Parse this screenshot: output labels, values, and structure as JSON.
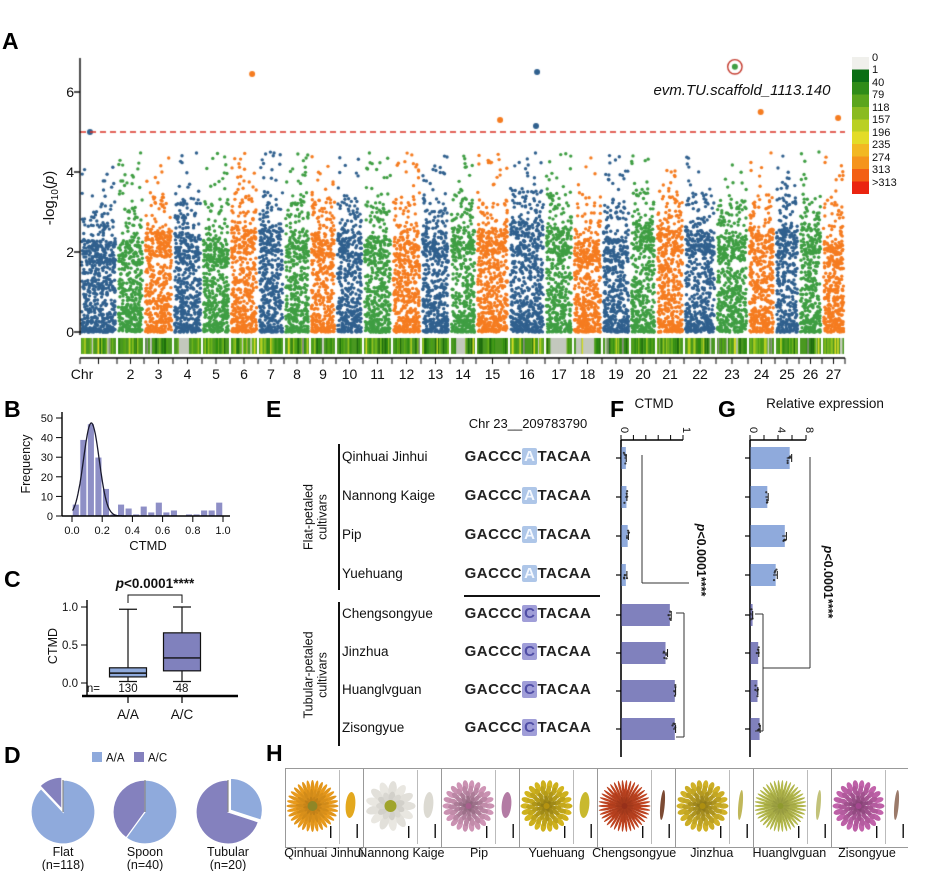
{
  "panel_labels": {
    "A": "A",
    "B": "B",
    "C": "C",
    "D": "D",
    "E": "E",
    "F": "F",
    "G": "G",
    "H": "H"
  },
  "chart_data": {
    "A_manhattan": {
      "type": "scatter",
      "subtype": "manhattan_gwas",
      "ylabel": "-log10(p)",
      "ylabel_parts": {
        "pre": "-log",
        "sub": "10",
        "open": "(",
        "p": "p",
        "close": ")"
      },
      "yticks": [
        0,
        2,
        4,
        6
      ],
      "ylim": [
        0,
        7
      ],
      "significance_threshold": 5,
      "threshold_color": "#d93025",
      "gene_label": "evm.TU.scaffold_1113.140",
      "chrom_labels": [
        "Chr",
        "2",
        "3",
        "4",
        "5",
        "6",
        "7",
        "8",
        "9",
        "10",
        "11",
        "12",
        "13",
        "14",
        "15",
        "16",
        "17",
        "18",
        "19",
        "20",
        "21",
        "22",
        "23",
        "24",
        "25",
        "26",
        "27"
      ],
      "chrom_rel_widths": [
        37,
        27,
        29,
        29,
        28,
        28,
        26,
        26,
        26,
        27,
        29,
        29,
        29,
        26,
        33,
        36,
        28,
        29,
        28,
        26,
        28,
        32,
        32,
        27,
        24,
        23,
        23
      ],
      "point_colors": [
        "#30608e",
        "#3f9e43",
        "#f57c20"
      ],
      "highlights": [
        {
          "chr": 1,
          "f": 0.27,
          "value": 5.0
        },
        {
          "chr": 6,
          "f": 0.79,
          "value": 6.45
        },
        {
          "chr": 15,
          "f": 0.73,
          "value": 5.3
        },
        {
          "chr": 16,
          "f": 0.75,
          "value": 5.15
        },
        {
          "chr": 16,
          "f": 0.78,
          "value": 6.5
        },
        {
          "chr": 23,
          "f": 0.59,
          "value": 6.63,
          "circled": true
        },
        {
          "chr": 24,
          "f": 0.47,
          "value": 5.5
        },
        {
          "chr": 27,
          "f": 0.7,
          "value": 5.35
        }
      ],
      "circle_color": "#c43b2e",
      "colorbar": {
        "labels": [
          "0",
          "1",
          "40",
          "79",
          "118",
          "157",
          "196",
          "235",
          "274",
          "313",
          ">313"
        ],
        "colors": [
          "#f0f0ec",
          "#0a6e14",
          "#2f8c18",
          "#5ba51c",
          "#8abb20",
          "#bad024",
          "#e3dc28",
          "#f2b822",
          "#f5941c",
          "#f36014",
          "#ea2410"
        ]
      },
      "density_track_palette": [
        [
          "#1d6b0e",
          0.16
        ],
        [
          "#2f8c12",
          0.2
        ],
        [
          "#4da016",
          0.2
        ],
        [
          "#6fb41c",
          0.15
        ],
        [
          "#93c41f",
          0.1
        ],
        [
          "#b6d022",
          0.07
        ],
        [
          "#d8dc26",
          0.04
        ],
        [
          "#c9cfc0",
          0.05
        ],
        [
          "#8a8f85",
          0.03
        ]
      ]
    },
    "B_histogram": {
      "type": "bar",
      "subtype": "histogram",
      "xlabel": "CTMD",
      "ylabel": "Frequency",
      "bin_start": 0.0,
      "bin_width": 0.05,
      "values": [
        6,
        39,
        47,
        30,
        14,
        1,
        6,
        4,
        1,
        5,
        2,
        7,
        2,
        3,
        0,
        1,
        1,
        3,
        3,
        7
      ],
      "xticks": [
        "0.0",
        "0.2",
        "0.4",
        "0.6",
        "0.8",
        "1.0"
      ],
      "yticks": [
        0,
        10,
        20,
        30,
        40,
        50
      ],
      "fit_curve": {
        "type": "gaussian",
        "mu": 0.128,
        "sigma": 0.052,
        "peak": 47.5
      },
      "bar_color": "#8e8fc6"
    },
    "C_boxplot": {
      "type": "box",
      "ylabel": "CTMD",
      "yticks": [
        "0.0",
        "0.5",
        "1.0"
      ],
      "n_prefix": "n=",
      "significance": "p<0.0001****",
      "groups": [
        {
          "label": "A/A",
          "n": "130",
          "whisker_low": 0.02,
          "q1": 0.08,
          "median": 0.13,
          "q3": 0.2,
          "whisker_high": 0.97,
          "color": "#8faadc"
        },
        {
          "label": "A/C",
          "n": "48",
          "whisker_low": 0.02,
          "q1": 0.16,
          "median": 0.33,
          "q3": 0.66,
          "whisker_high": 1.0,
          "color": "#8081bd"
        }
      ]
    },
    "D_pies": {
      "type": "pie",
      "legend": [
        {
          "label": "A/A",
          "color": "#8faadc"
        },
        {
          "label": "A/C",
          "color": "#8481be"
        }
      ],
      "pies": [
        {
          "label": "Flat",
          "n_label": "(n=118)",
          "slices": [
            {
              "name": "A/C",
              "fraction": 0.12
            },
            {
              "name": "A/A",
              "fraction": 0.88
            }
          ],
          "explode": "A/C"
        },
        {
          "label": "Spoon",
          "n_label": "(n=40)",
          "slices": [
            {
              "name": "A/C",
              "fraction": 0.4
            },
            {
              "name": "A/A",
              "fraction": 0.6
            }
          ],
          "explode": null
        },
        {
          "label": "Tubular",
          "n_label": "(n=20)",
          "slices": [
            {
              "name": "A/C",
              "fraction": 0.7
            },
            {
              "name": "A/A",
              "fraction": 0.3
            }
          ],
          "explode": "A/A"
        }
      ]
    },
    "E_alignment": {
      "type": "table",
      "subtype": "sequence_alignment",
      "position_label": "Chr 23__209783790",
      "seq_prefix": "GACCC",
      "seq_suffix": "TACAA",
      "groups": [
        {
          "group_label": "Flat-petaled cultivars",
          "variant": "A",
          "variant_bg": "#aec6e8",
          "variant_color": "#f4f8ff",
          "rows": [
            "Qinhuai Jinhui",
            "Nannong Kaige",
            "Pip",
            "Yuehuang"
          ]
        },
        {
          "group_label": "Tubular-petaled cultivars",
          "variant": "C",
          "variant_bg": "#a09ed8",
          "variant_color": "#504ea6",
          "rows": [
            "Chengsongyue",
            "Jinzhua",
            "Huanglvguan",
            "Zisongyue"
          ]
        }
      ]
    },
    "F_bar_ctmd": {
      "type": "bar",
      "orientation": "horizontal",
      "title": "CTMD",
      "xlim": [
        0,
        1
      ],
      "xticks": [
        0,
        0.2,
        0.4,
        0.6,
        0.8,
        1
      ],
      "xtick_labels": [
        "0",
        "",
        "",
        "",
        "",
        "1"
      ],
      "categories": [
        "Qinhuai Jinhui",
        "Nannong Kaige",
        "Pip",
        "Yuehuang",
        "Chengsongyue",
        "Jinzhua",
        "Huanglvguan",
        "Zisongyue"
      ],
      "values": [
        0.07,
        0.08,
        0.1,
        0.07,
        0.78,
        0.71,
        0.86,
        0.86
      ],
      "errors": [
        0.015,
        0.015,
        0.02,
        0.025,
        0.03,
        0.04,
        0.02,
        0.02
      ],
      "bar_colors": [
        "#8faadc",
        "#8faadc",
        "#8faadc",
        "#8faadc",
        "#8081bd",
        "#8081bd",
        "#8081bd",
        "#8081bd"
      ],
      "significance": "p<0.0001****"
    },
    "G_bar_expression": {
      "type": "bar",
      "orientation": "horizontal",
      "title": "Relative expression",
      "xlim": [
        0,
        8
      ],
      "xticks": [
        0,
        2,
        4,
        6,
        8
      ],
      "xtick_labels": [
        "0",
        "",
        "4",
        "",
        "8"
      ],
      "categories": [
        "Qinhuai Jinhui",
        "Nannong Kaige",
        "Pip",
        "Yuehuang",
        "Chengsongyue",
        "Jinzhua",
        "Huanglvguan",
        "Zisongyue"
      ],
      "values": [
        5.6,
        2.4,
        4.9,
        3.6,
        0.3,
        1.1,
        1.0,
        1.3
      ],
      "errors": [
        0.35,
        0.2,
        0.3,
        0.3,
        0.08,
        0.15,
        0.12,
        0.15
      ],
      "bar_colors": [
        "#8faadc",
        "#8faadc",
        "#8faadc",
        "#8faadc",
        "#8081bd",
        "#8081bd",
        "#8081bd",
        "#8081bd"
      ],
      "significance": "p<0.0001****"
    },
    "H_photos": {
      "type": "table",
      "subtype": "cultivar_photos",
      "items": [
        {
          "name": "Qinhuai Jinhui",
          "form": "daisy",
          "petal_color_main": "#e89a1c",
          "flower_center": "#8f8626",
          "petal_type": "broad",
          "petal_swatch": "#e3a81e"
        },
        {
          "name": "Nannong Kaige",
          "form": "daisy_broad",
          "petal_color_main": "#e9e7e1",
          "flower_center": "#a0a42c",
          "petal_type": "broad",
          "petal_swatch": "#dcdad2"
        },
        {
          "name": "Pip",
          "form": "pompom",
          "petal_color_main": "#cf95b6",
          "flower_center": "#a85f8d",
          "petal_type": "broad",
          "petal_swatch": "#b37ba4"
        },
        {
          "name": "Yuehuang",
          "form": "pompom",
          "petal_color_main": "#d3b51e",
          "flower_center": "#b59310",
          "petal_type": "broad",
          "petal_swatch": "#c9b92e"
        },
        {
          "name": "Chengsongyue",
          "form": "spiky",
          "petal_color_main": "#c14420",
          "flower_center": "#97301a",
          "petal_type": "tube",
          "petal_swatch": "#7c4a33"
        },
        {
          "name": "Jinzhua",
          "form": "pompom",
          "petal_color_main": "#d1b227",
          "flower_center": "#ae8f10",
          "petal_type": "tube",
          "petal_swatch": "#c0b75a"
        },
        {
          "name": "Huanglvguan",
          "form": "spiky",
          "petal_color_main": "#b5ba4c",
          "flower_center": "#8f9a2e",
          "petal_type": "tube",
          "petal_swatch": "#c2c27a"
        },
        {
          "name": "Zisongyue",
          "form": "pompom",
          "petal_color_main": "#c263ab",
          "flower_center": "#a4478f",
          "petal_type": "tube",
          "petal_swatch": "#9b7a6a"
        }
      ]
    }
  }
}
